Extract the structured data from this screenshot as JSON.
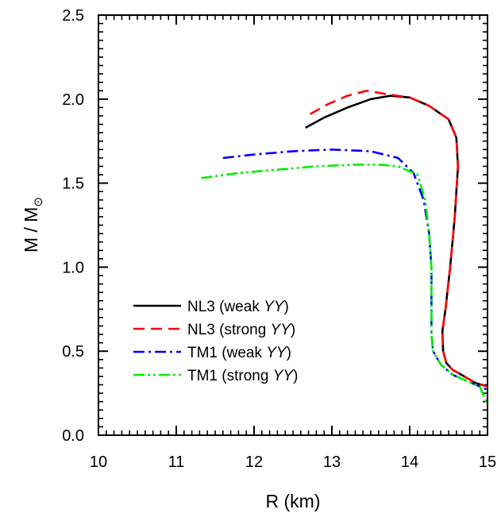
{
  "chart_data": {
    "type": "line",
    "xlabel": "R (km)",
    "ylabel": {
      "base": "M / M",
      "subscript": "⊙"
    },
    "xlim": [
      10,
      15
    ],
    "ylim": [
      0.0,
      2.5
    ],
    "x_ticks": [
      "10",
      "11",
      "12",
      "13",
      "14",
      "15"
    ],
    "y_ticks": [
      "0.0",
      "0.5",
      "1.0",
      "1.5",
      "2.0",
      "2.5"
    ],
    "grid": false,
    "legend_position": "lower-left",
    "series": [
      {
        "name": "NL3 (weak YY)",
        "name_parts": {
          "prefix": "NL3 (weak ",
          "italic": "YY",
          "suffix": ")"
        },
        "color": "#000000",
        "dash": "solid",
        "points": [
          [
            12.66,
            1.83
          ],
          [
            12.9,
            1.89
          ],
          [
            13.2,
            1.95
          ],
          [
            13.5,
            2.0
          ],
          [
            13.75,
            2.02
          ],
          [
            14.0,
            2.01
          ],
          [
            14.25,
            1.96
          ],
          [
            14.5,
            1.88
          ],
          [
            14.6,
            1.77
          ],
          [
            14.62,
            1.6
          ],
          [
            14.58,
            1.3
          ],
          [
            14.52,
            1.0
          ],
          [
            14.46,
            0.75
          ],
          [
            14.42,
            0.62
          ],
          [
            14.43,
            0.5
          ],
          [
            14.47,
            0.43
          ],
          [
            14.55,
            0.39
          ],
          [
            14.7,
            0.35
          ],
          [
            14.85,
            0.31
          ],
          [
            15.0,
            0.29
          ]
        ]
      },
      {
        "name": "NL3 (strong YY)",
        "name_parts": {
          "prefix": "NL3 (strong ",
          "italic": "YY",
          "suffix": ")"
        },
        "color": "#ff0000",
        "dash": "dashed",
        "points": [
          [
            12.72,
            1.91
          ],
          [
            12.95,
            1.97
          ],
          [
            13.2,
            2.02
          ],
          [
            13.45,
            2.05
          ],
          [
            13.7,
            2.03
          ],
          [
            14.0,
            2.01
          ],
          [
            14.25,
            1.96
          ],
          [
            14.5,
            1.88
          ],
          [
            14.6,
            1.77
          ],
          [
            14.62,
            1.6
          ],
          [
            14.58,
            1.3
          ],
          [
            14.52,
            1.0
          ],
          [
            14.46,
            0.75
          ],
          [
            14.42,
            0.62
          ],
          [
            14.43,
            0.5
          ],
          [
            14.47,
            0.43
          ],
          [
            14.55,
            0.39
          ],
          [
            14.7,
            0.35
          ],
          [
            14.85,
            0.31
          ],
          [
            15.0,
            0.29
          ]
        ]
      },
      {
        "name": "TM1 (weak YY)",
        "name_parts": {
          "prefix": "TM1 (weak ",
          "italic": "YY",
          "suffix": ")"
        },
        "color": "#0000ff",
        "dash": "dashdot",
        "points": [
          [
            11.6,
            1.65
          ],
          [
            12.0,
            1.67
          ],
          [
            12.5,
            1.69
          ],
          [
            13.0,
            1.7
          ],
          [
            13.5,
            1.69
          ],
          [
            13.85,
            1.65
          ],
          [
            14.05,
            1.56
          ],
          [
            14.18,
            1.4
          ],
          [
            14.25,
            1.2
          ],
          [
            14.28,
            1.0
          ],
          [
            14.28,
            0.8
          ],
          [
            14.28,
            0.6
          ],
          [
            14.3,
            0.5
          ],
          [
            14.4,
            0.42
          ],
          [
            14.55,
            0.36
          ],
          [
            14.75,
            0.32
          ],
          [
            14.9,
            0.29
          ],
          [
            15.0,
            0.27
          ]
        ]
      },
      {
        "name": "TM1 (strong YY)",
        "name_parts": {
          "prefix": "TM1 (strong ",
          "italic": "YY",
          "suffix": ")"
        },
        "color": "#00ee00",
        "dash": "dashdotdot",
        "points": [
          [
            11.32,
            1.53
          ],
          [
            11.8,
            1.56
          ],
          [
            12.3,
            1.58
          ],
          [
            12.8,
            1.6
          ],
          [
            13.3,
            1.61
          ],
          [
            13.6,
            1.61
          ],
          [
            13.85,
            1.6
          ],
          [
            14.1,
            1.55
          ],
          [
            14.2,
            1.4
          ],
          [
            14.25,
            1.2
          ],
          [
            14.28,
            1.0
          ],
          [
            14.28,
            0.8
          ],
          [
            14.28,
            0.6
          ],
          [
            14.3,
            0.5
          ],
          [
            14.4,
            0.42
          ],
          [
            14.55,
            0.36
          ],
          [
            14.75,
            0.32
          ],
          [
            14.9,
            0.29
          ],
          [
            15.0,
            0.18
          ]
        ]
      }
    ]
  }
}
